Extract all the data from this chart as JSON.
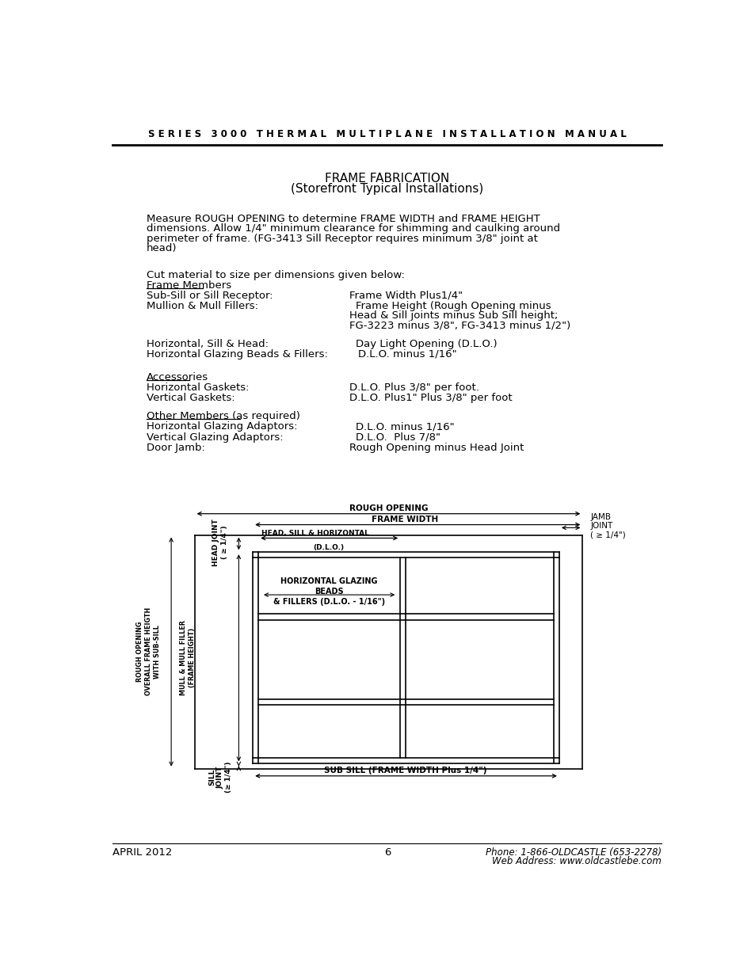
{
  "title_header": "S E R I E S   3 0 0 0   T H E R M A L   M U L T I P L A N E   I N S T A L L A T I O N   M A N U A L",
  "title1": "FRAME FABRICATION",
  "title2": "(Storefront Typical Installations)",
  "para1_line1": "Measure ROUGH OPENING to determine FRAME WIDTH and FRAME HEIGHT",
  "para1_line2": "dimensions. Allow 1/4\" minimum clearance for shimming and caulking around",
  "para1_line3": "perimeter of frame. (FG-3413 Sill Receptor requires minimum 3/8\" joint at",
  "para1_line4": "head)",
  "para2": "Cut material to size per dimensions given below:",
  "underline_label1": "Frame Members",
  "row1_left": "Sub-Sill or Sill Receptor:",
  "row1_right": "Frame Width Plus1/4\"",
  "row2_left": "Mullion & Mull Fillers:",
  "row2_right_1": "Frame Height (Rough Opening minus",
  "row2_right_2": "Head & Sill joints minus Sub Sill height;",
  "row2_right_3": "FG-3223 minus 3/8\", FG-3413 minus 1/2\")",
  "row3_left": "Horizontal, Sill & Head:",
  "row3_right": "Day Light Opening (D.L.O.)",
  "row4_left": "Horizontal Glazing Beads & Fillers:",
  "row4_right": "D.L.O. minus 1/16\"",
  "underline_label2": "Accessories",
  "row5_left": "Horizontal Gaskets:",
  "row5_right": "D.L.O. Plus 3/8\" per foot.",
  "row6_left": "Vertical Gaskets:",
  "row6_right": "D.L.O. Plus1\" Plus 3/8\" per foot",
  "underline_label3": "Other Members (as required)",
  "row7_left": "Horizontal Glazing Adaptors:",
  "row7_right": "D.L.O. minus 1/16\"",
  "row8_left": "Vertical Glazing Adaptors:",
  "row8_right": "D.L.O.  Plus 7/8\"",
  "row9_left": "Door Jamb:",
  "row9_right": "Rough Opening minus Head Joint",
  "footer_left": "APRIL 2012",
  "footer_center": "6",
  "footer_right_1": "Phone: 1-866-OLDCASTLE (653-2278)",
  "footer_right_2": "Web Address: www.oldcastlebe.com",
  "bg_color": "#ffffff",
  "text_color": "#000000"
}
